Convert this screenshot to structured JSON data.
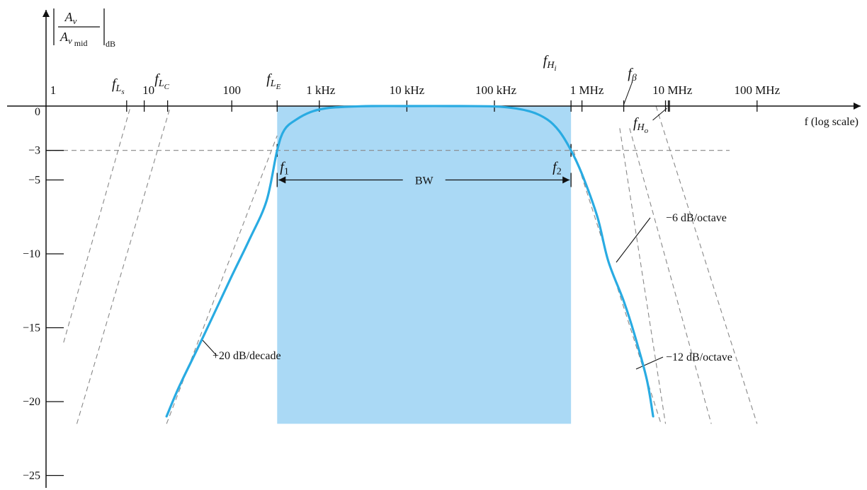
{
  "chart_data": {
    "type": "line",
    "x_scale": "log",
    "y_unit_label": "dB",
    "axis": {
      "y_numerator": "A",
      "y_numerator_sub": "v",
      "y_denominator": "A",
      "y_denominator_sub": "v",
      "y_denominator_subsub": "mid",
      "x_label": "f (log scale)"
    },
    "ylim": [
      -25,
      0
    ],
    "y_ticks": [
      {
        "value": 0,
        "label": "0"
      },
      {
        "value": -3,
        "label": "−3"
      },
      {
        "value": -5,
        "label": "−5"
      },
      {
        "value": -10,
        "label": "−10"
      },
      {
        "value": -15,
        "label": "−15"
      },
      {
        "value": -20,
        "label": "−20"
      },
      {
        "value": -25,
        "label": "−25"
      }
    ],
    "x_ticks": [
      {
        "value": 1,
        "label": "1"
      },
      {
        "value": 10,
        "label": "10"
      },
      {
        "value": 100,
        "label": "100"
      },
      {
        "value": 1000,
        "label": "1 kHz"
      },
      {
        "value": 10000,
        "label": "10 kHz"
      },
      {
        "value": 100000,
        "label": "100 kHz"
      },
      {
        "value": 1000000,
        "label": "1 MHz"
      },
      {
        "value": 10000000,
        "label": "10 MHz"
      },
      {
        "value": 100000000,
        "label": "100 MHz"
      }
    ],
    "break_frequencies": [
      {
        "name": "fLs",
        "symbol": "f",
        "sub": "L",
        "subsub": "s",
        "value": 6.3
      },
      {
        "name": "fLC",
        "symbol": "f",
        "sub": "L",
        "subsub": "C",
        "value": 18.5
      },
      {
        "name": "fLE",
        "symbol": "f",
        "sub": "L",
        "subsub": "E",
        "value": 330
      },
      {
        "name": "fHi",
        "symbol": "f",
        "sub": "H",
        "subsub": "i",
        "value": 750000
      },
      {
        "name": "fbeta",
        "symbol": "f",
        "sub": "β",
        "subsub": "",
        "value": 3000000
      },
      {
        "name": "fHo",
        "symbol": "f",
        "sub": "H",
        "subsub": "o",
        "value": 9000000
      }
    ],
    "cutoffs": [
      {
        "name": "f1",
        "symbol": "f",
        "sub": "1",
        "value": 330,
        "db": -3
      },
      {
        "name": "f2",
        "symbol": "f",
        "sub": "2",
        "value": 750000,
        "db": -3
      }
    ],
    "bandwidth_label": "BW",
    "series": [
      {
        "x": [
          18,
          25,
          40,
          60,
          100,
          160,
          250,
          330,
          400,
          550,
          800,
          1200,
          2000,
          4000,
          10000,
          40000,
          120000,
          250000,
          400000,
          550000,
          750000,
          1000000,
          1500000,
          2000000,
          3000000,
          4000000,
          5500000,
          6500000
        ],
        "y": [
          -21,
          -19,
          -16.5,
          -14.3,
          -11.5,
          -9,
          -6.4,
          -3,
          -1.6,
          -0.9,
          -0.4,
          -0.15,
          -0.05,
          0,
          0,
          0,
          -0.05,
          -0.35,
          -0.9,
          -1.7,
          -3,
          -4.6,
          -7.5,
          -10.5,
          -13.2,
          -15.5,
          -18.5,
          -21
        ]
      }
    ],
    "asymptotes": [
      {
        "x": [
          1.2,
          7.0
        ],
        "y": [
          -16,
          0
        ]
      },
      {
        "x": [
          1.7,
          20
        ],
        "y": [
          -21.5,
          0
        ]
      },
      {
        "x": [
          18,
          330
        ],
        "y": [
          -21.5,
          -2
        ]
      },
      {
        "x": [
          800000,
          8000000
        ],
        "y": [
          -3,
          -21.5
        ]
      },
      {
        "x": [
          2700000,
          9000000
        ],
        "y": [
          -1.5,
          -21.5
        ]
      },
      {
        "x": [
          3500000,
          30000000
        ],
        "y": [
          -1.5,
          -21.5
        ]
      },
      {
        "x": [
          7000000,
          100000000
        ],
        "y": [
          0,
          -21.5
        ]
      }
    ],
    "annotations": [
      {
        "text": "+20 dB/decade",
        "x": 200,
        "y": -16.8
      },
      {
        "text": "−6 dB/octave",
        "x": 1400000,
        "y": -10.4
      },
      {
        "text": "−12 dB/octave",
        "x": 4500000,
        "y": -16.5
      }
    ],
    "colors": {
      "curve": "#29abe2",
      "band_fill": "#aad9f5",
      "minus3_label": "#29abe2",
      "axis": "#111111",
      "dashed": "#888888"
    }
  }
}
